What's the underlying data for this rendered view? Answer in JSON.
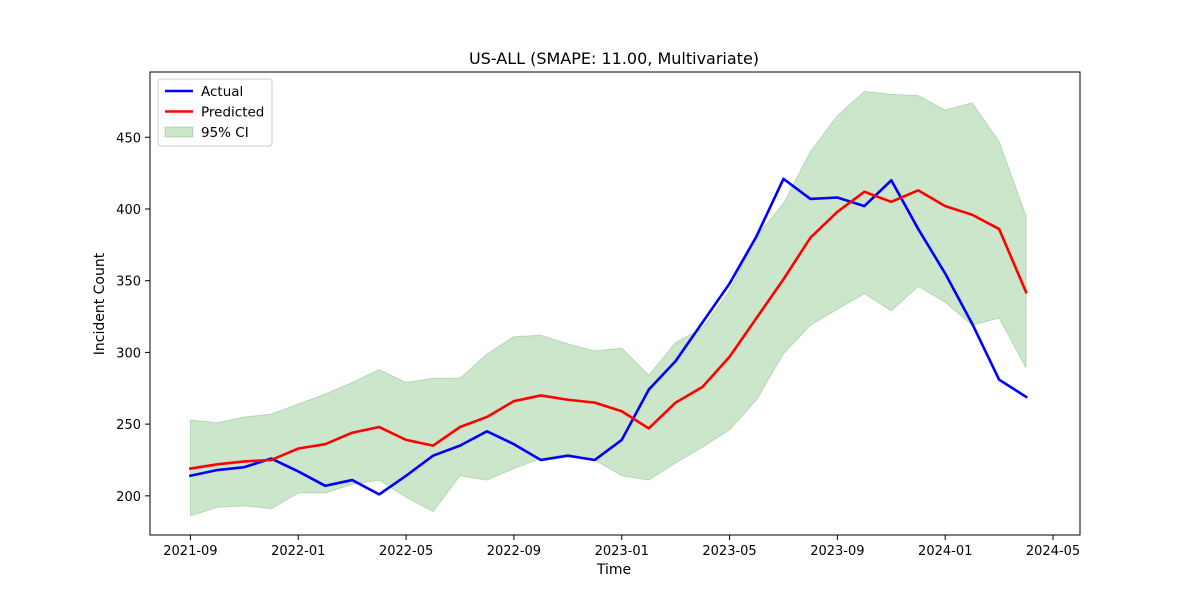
{
  "chart_data": {
    "type": "line",
    "title": "US-ALL (SMAPE: 11.00, Multivariate)",
    "xlabel": "Time",
    "ylabel": "Incident Count",
    "x": [
      "2021-09",
      "2021-10",
      "2021-11",
      "2021-12",
      "2022-01",
      "2022-02",
      "2022-03",
      "2022-04",
      "2022-05",
      "2022-06",
      "2022-07",
      "2022-08",
      "2022-09",
      "2022-10",
      "2022-11",
      "2022-12",
      "2023-01",
      "2023-02",
      "2023-03",
      "2023-04",
      "2023-05",
      "2023-06",
      "2023-07",
      "2023-08",
      "2023-09",
      "2023-10",
      "2023-11",
      "2023-12",
      "2024-01",
      "2024-02",
      "2024-03",
      "2024-04"
    ],
    "series": [
      {
        "name": "Actual",
        "color": "#0000ff",
        "values": [
          214,
          218,
          220,
          226,
          217,
          207,
          211,
          201,
          214,
          228,
          235,
          245,
          236,
          225,
          228,
          225,
          239,
          274,
          294,
          321,
          348,
          381,
          421,
          407,
          408,
          402,
          420,
          386,
          355,
          320,
          281,
          269
        ]
      },
      {
        "name": "Predicted",
        "color": "#ff0000",
        "values": [
          219,
          222,
          224,
          225,
          233,
          236,
          244,
          248,
          239,
          235,
          248,
          255,
          266,
          270,
          267,
          265,
          259,
          247,
          265,
          276,
          297,
          324,
          351,
          380,
          398,
          412,
          405,
          413,
          402,
          396,
          386,
          342
        ]
      }
    ],
    "ci": {
      "name": "95% CI",
      "color": "#008000",
      "opacity": 0.2,
      "upper": [
        253,
        251,
        255,
        257,
        264,
        271,
        279,
        288,
        279,
        282,
        282,
        299,
        311,
        312,
        306,
        301,
        303,
        284,
        307,
        317,
        343,
        381,
        404,
        440,
        465,
        482,
        480,
        479,
        469,
        474,
        447,
        395
      ],
      "lower": [
        186,
        192,
        193,
        191,
        202,
        202,
        208,
        211,
        199,
        189,
        214,
        211,
        219,
        226,
        229,
        225,
        214,
        211,
        223,
        234,
        246,
        267,
        299,
        319,
        330,
        341,
        329,
        346,
        335,
        319,
        324,
        289
      ]
    },
    "xticks": [
      {
        "label": "2021-09",
        "index": 0
      },
      {
        "label": "2022-01",
        "index": 4
      },
      {
        "label": "2022-05",
        "index": 8
      },
      {
        "label": "2022-09",
        "index": 12
      },
      {
        "label": "2023-01",
        "index": 16
      },
      {
        "label": "2023-05",
        "index": 20
      },
      {
        "label": "2023-09",
        "index": 24
      },
      {
        "label": "2024-01",
        "index": 28
      },
      {
        "label": "2024-05",
        "index": 32
      }
    ],
    "yticks": [
      200,
      250,
      300,
      350,
      400,
      450
    ],
    "ylim": [
      172.7,
      495.5
    ],
    "xlim": [
      -1.5,
      33.0
    ],
    "grid": false,
    "legend_position": "top-left"
  }
}
